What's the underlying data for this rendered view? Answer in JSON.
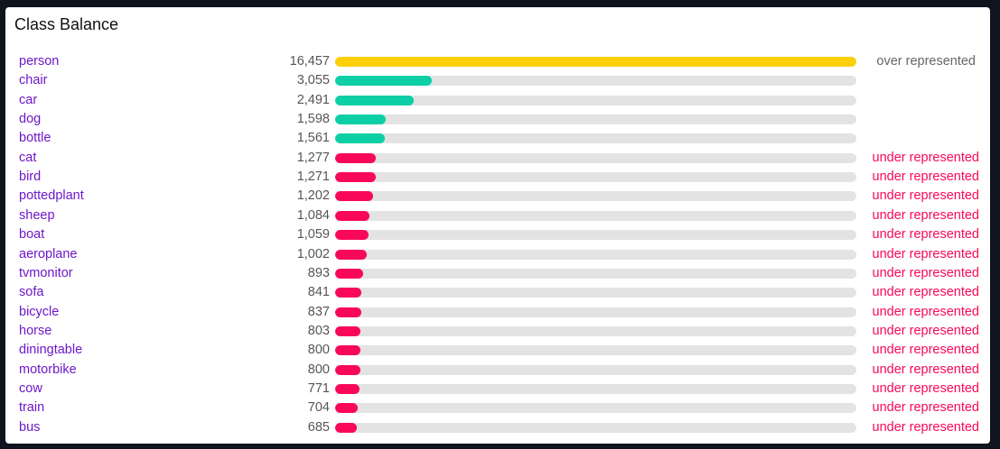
{
  "panel": {
    "title": "Class Balance"
  },
  "colors": {
    "over": "#fccf09",
    "balanced": "#0ccfa6",
    "under": "#f9085a",
    "status_over": "#666666",
    "status_under": "#f9085a"
  },
  "chart_data": {
    "type": "bar",
    "orientation": "horizontal",
    "title": "Class Balance",
    "xlim": [
      0,
      16457
    ],
    "categories": [
      "person",
      "chair",
      "car",
      "dog",
      "bottle",
      "cat",
      "bird",
      "pottedplant",
      "sheep",
      "boat",
      "aeroplane",
      "tvmonitor",
      "sofa",
      "bicycle",
      "horse",
      "diningtable",
      "motorbike",
      "cow",
      "train",
      "bus"
    ],
    "values": [
      16457,
      3055,
      2491,
      1598,
      1561,
      1277,
      1271,
      1202,
      1084,
      1059,
      1002,
      893,
      841,
      837,
      803,
      800,
      800,
      771,
      704,
      685
    ],
    "value_labels": [
      "16,457",
      "3,055",
      "2,491",
      "1,598",
      "1,561",
      "1,277",
      "1,271",
      "1,202",
      "1,084",
      "1,059",
      "1,002",
      "893",
      "841",
      "837",
      "803",
      "800",
      "800",
      "771",
      "704",
      "685"
    ],
    "status_keys": [
      "over",
      "balanced",
      "balanced",
      "balanced",
      "balanced",
      "under",
      "under",
      "under",
      "under",
      "under",
      "under",
      "under",
      "under",
      "under",
      "under",
      "under",
      "under",
      "under",
      "under",
      "under"
    ],
    "status_labels": [
      "over represented",
      "",
      "",
      "",
      "",
      "under represented",
      "under represented",
      "under represented",
      "under represented",
      "under represented",
      "under represented",
      "under represented",
      "under represented",
      "under represented",
      "under represented",
      "under represented",
      "under represented",
      "under represented",
      "under represented",
      "under represented"
    ]
  }
}
